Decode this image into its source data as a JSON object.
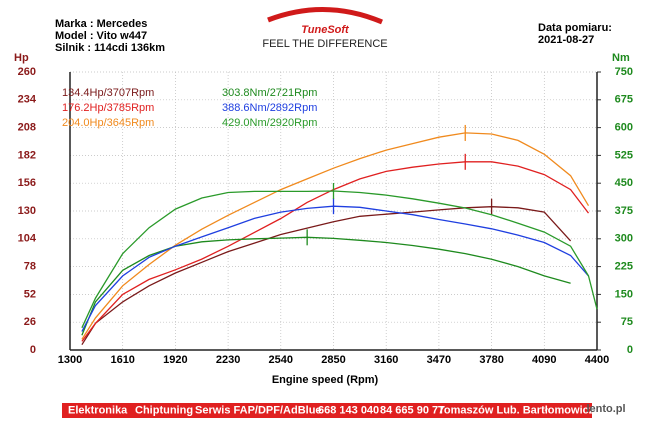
{
  "header": {
    "lines": [
      "Marka : Mercedes",
      "Model : Vito w447",
      "Silnik  : 114cdi 136km"
    ],
    "date_label": "Data pomiaru:",
    "date": "2021-08-27"
  },
  "logo": {
    "name": "TuneSoft",
    "tagline": "FEEL THE DIFFERENCE"
  },
  "footer": [
    "Elektronika",
    "Chiptuning",
    "Serwis FAP/DPF/AdBlue",
    "668 143 040",
    "84 665 90 77",
    "Tomaszów Lub. Bartłomowicz"
  ],
  "watermark": "lento.pl",
  "chart_data": {
    "type": "line",
    "y_label": "Hp",
    "y2_label": "Nm",
    "x_label": "Engine speed (Rpm)",
    "x": [
      1370,
      1450,
      1610,
      1765,
      1920,
      2075,
      2230,
      2385,
      2540,
      2695,
      2850,
      3005,
      3160,
      3315,
      3470,
      3625,
      3780,
      3935,
      4090,
      4245,
      4350,
      4400
    ],
    "xlim": [
      1300,
      4400
    ],
    "xticks": [
      1300,
      1610,
      1920,
      2230,
      2540,
      2850,
      3160,
      3470,
      3780,
      4090,
      4400
    ],
    "ylim": [
      0,
      260
    ],
    "yticks": [
      0,
      26,
      52,
      78,
      104,
      130,
      156,
      182,
      208,
      234,
      260
    ],
    "y2lim": [
      0,
      750
    ],
    "y2ticks": [
      0,
      75,
      150,
      225,
      300,
      375,
      450,
      525,
      600,
      675,
      750
    ],
    "grid": true,
    "series": [
      {
        "name": "134.4Hp/3707Rpm",
        "color": "#7a1a1a",
        "values": [
          5,
          25,
          45,
          60,
          72,
          82,
          92,
          100,
          108,
          114,
          120,
          125,
          127,
          129,
          131,
          133,
          134,
          133,
          129,
          102,
          null,
          null
        ]
      },
      {
        "name": "176.2Hp/3785Rpm",
        "color": "#e02020",
        "values": [
          8,
          25,
          52,
          66,
          75,
          85,
          97,
          110,
          123,
          138,
          150,
          160,
          167,
          171,
          174,
          176,
          176,
          172,
          164,
          150,
          128,
          null
        ]
      },
      {
        "name": "204.0Hp/3645Rpm",
        "color": "#f08a1e",
        "values": [
          10,
          30,
          60,
          80,
          98,
          113,
          126,
          138,
          150,
          160,
          170,
          179,
          187,
          193,
          199,
          203,
          202,
          196,
          183,
          163,
          135,
          null
        ]
      },
      {
        "name": "303.8Nm/2721Rpm",
        "color": "#1e8a1e",
        "axis": "y2",
        "values": [
          40,
          130,
          215,
          255,
          280,
          292,
          297,
          300,
          302,
          304,
          301,
          296,
          290,
          282,
          272,
          260,
          245,
          225,
          200,
          180,
          null,
          null
        ]
      },
      {
        "name": "388.6Nm/2892Rpm",
        "color": "#1f3fe0",
        "axis": "y2",
        "values": [
          50,
          120,
          200,
          250,
          280,
          305,
          330,
          355,
          372,
          382,
          388,
          385,
          375,
          365,
          352,
          340,
          327,
          310,
          290,
          255,
          200,
          null
        ]
      },
      {
        "name": "429.0Nm/2920Rpm",
        "color": "#2a9a2a",
        "axis": "y2",
        "values": [
          60,
          140,
          260,
          330,
          380,
          410,
          425,
          428,
          428,
          428,
          429,
          425,
          418,
          408,
          396,
          383,
          365,
          342,
          318,
          280,
          200,
          110
        ]
      }
    ]
  }
}
